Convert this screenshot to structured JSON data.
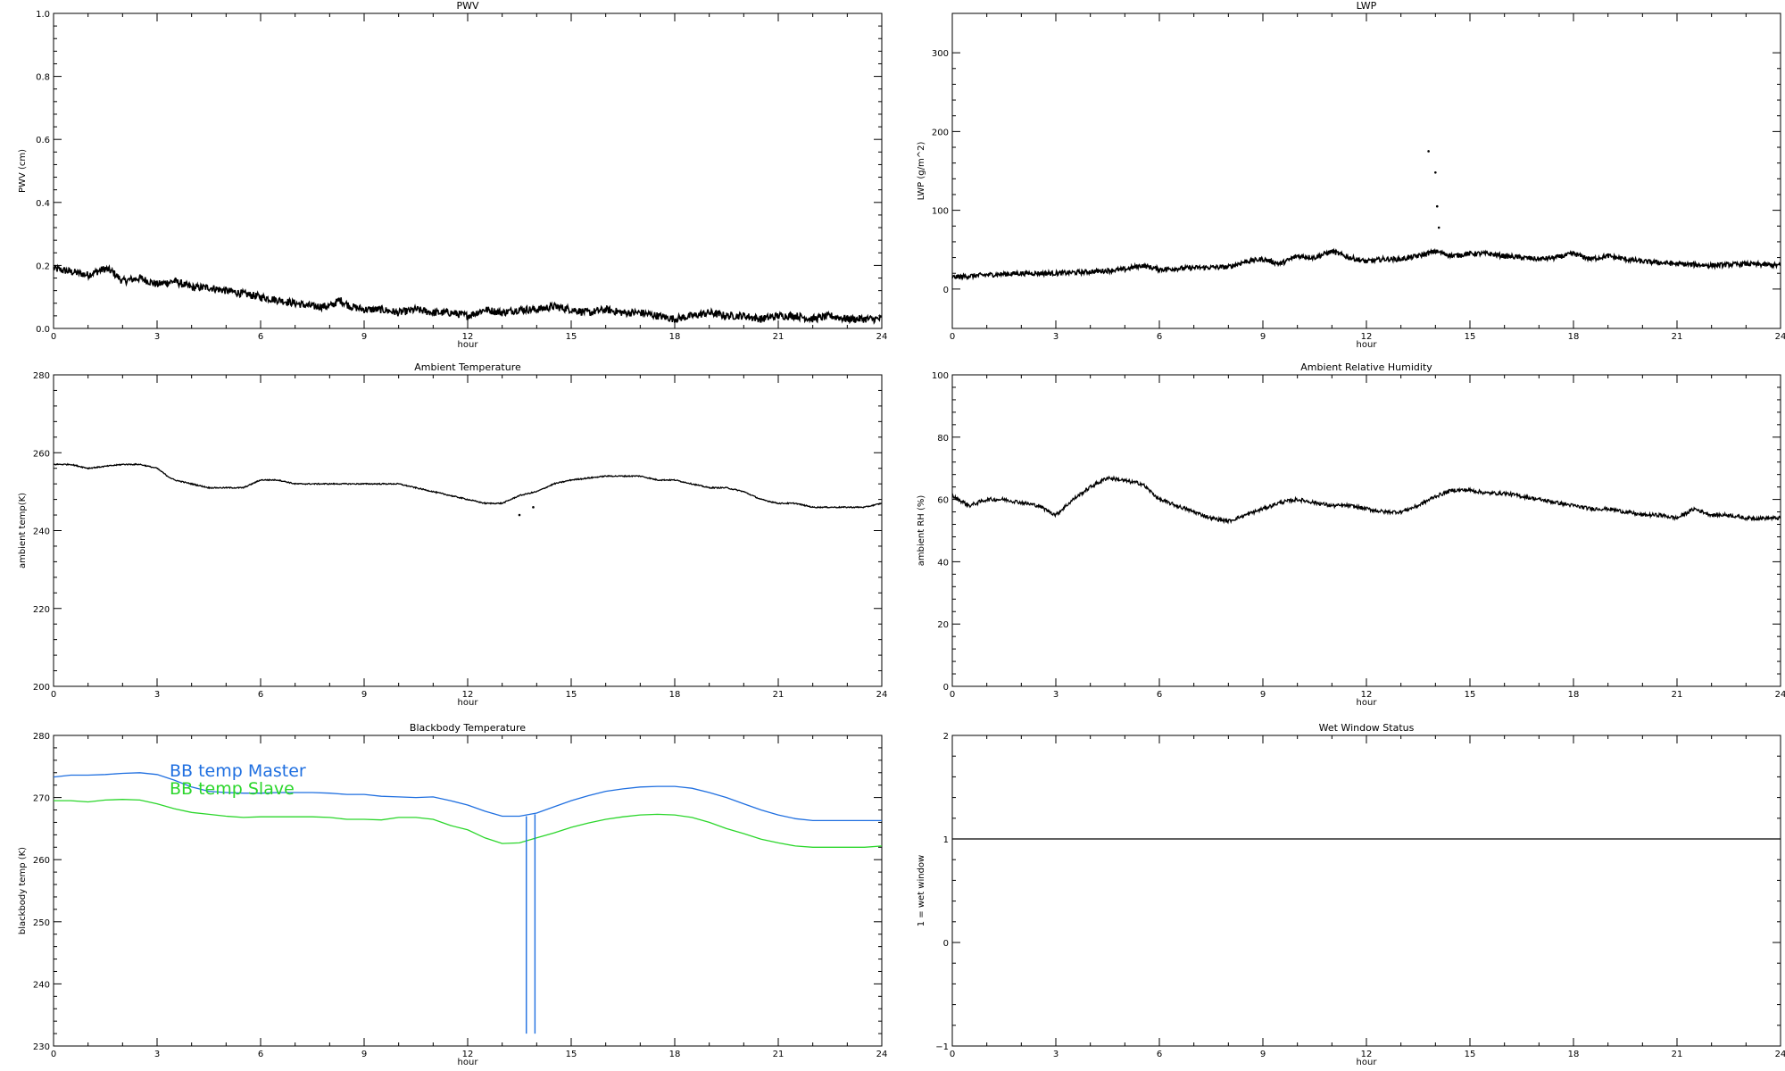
{
  "xlabel": "hour",
  "chart_data": [
    {
      "type": "scatter",
      "title": "PWV",
      "xlabel": "hour",
      "ylabel": "PWV (cm)",
      "xlim": [
        0,
        24
      ],
      "ylim": [
        0,
        1
      ],
      "xticks": [
        0,
        3,
        6,
        9,
        12,
        15,
        18,
        21,
        24
      ],
      "yticks": [
        "0.0",
        "0.2",
        "0.4",
        "0.6",
        "0.8",
        "1.0"
      ],
      "noise": 0.012,
      "series": [
        {
          "color": "#000000",
          "x": [
            0,
            0.5,
            1,
            1.5,
            1.7,
            2,
            2.5,
            3,
            3.5,
            4,
            4.5,
            5,
            5.5,
            6,
            6.5,
            7,
            7.5,
            8,
            8.3,
            8.6,
            9,
            9.5,
            10,
            10.5,
            11,
            11.5,
            12,
            12.5,
            13,
            13.5,
            14,
            14.5,
            15,
            15.5,
            16,
            16.5,
            17,
            17.5,
            18,
            18.5,
            19,
            19.5,
            20,
            20.5,
            21,
            21.5,
            22,
            22.5,
            23,
            23.5,
            24
          ],
          "y": [
            0.19,
            0.18,
            0.17,
            0.19,
            0.18,
            0.15,
            0.16,
            0.14,
            0.15,
            0.13,
            0.13,
            0.12,
            0.11,
            0.1,
            0.09,
            0.08,
            0.07,
            0.07,
            0.09,
            0.07,
            0.06,
            0.06,
            0.05,
            0.06,
            0.05,
            0.05,
            0.04,
            0.06,
            0.05,
            0.06,
            0.06,
            0.07,
            0.06,
            0.05,
            0.06,
            0.05,
            0.05,
            0.04,
            0.03,
            0.04,
            0.05,
            0.04,
            0.04,
            0.03,
            0.04,
            0.04,
            0.03,
            0.04,
            0.03,
            0.03,
            0.03
          ]
        }
      ]
    },
    {
      "type": "scatter",
      "title": "LWP",
      "xlabel": "hour",
      "ylabel": "LWP (g/m^2)",
      "xlim": [
        0,
        24
      ],
      "ylim": [
        -50,
        350
      ],
      "xticks": [
        0,
        3,
        6,
        9,
        12,
        15,
        18,
        21,
        24
      ],
      "yticks": [
        "0",
        "100",
        "200",
        "300"
      ],
      "noise": 3,
      "series": [
        {
          "color": "#000000",
          "x": [
            0,
            1,
            2,
            3,
            4,
            5,
            5.5,
            6,
            7,
            8,
            8.5,
            9,
            9.5,
            10,
            10.5,
            11,
            11.5,
            12,
            12.5,
            13,
            13.5,
            14,
            14.5,
            15,
            15.5,
            16,
            16.5,
            17,
            17.5,
            18,
            18.5,
            19,
            19.5,
            20,
            21,
            22,
            23,
            24
          ],
          "y": [
            15,
            18,
            20,
            20,
            22,
            25,
            30,
            25,
            27,
            28,
            35,
            38,
            32,
            42,
            40,
            48,
            40,
            35,
            38,
            38,
            42,
            48,
            42,
            45,
            45,
            42,
            40,
            38,
            40,
            45,
            38,
            42,
            38,
            35,
            32,
            30,
            32,
            30
          ]
        }
      ],
      "outliers": [
        {
          "x": 13.8,
          "y": 175
        },
        {
          "x": 14.0,
          "y": 148
        },
        {
          "x": 14.05,
          "y": 105
        },
        {
          "x": 14.1,
          "y": 78
        }
      ]
    },
    {
      "type": "line",
      "title": "Ambient Temperature",
      "xlabel": "hour",
      "ylabel": "ambient temp(K)",
      "xlim": [
        0,
        24
      ],
      "ylim": [
        200,
        280
      ],
      "xticks": [
        0,
        3,
        6,
        9,
        12,
        15,
        18,
        21,
        24
      ],
      "yticks": [
        "200",
        "220",
        "240",
        "260",
        "280"
      ],
      "noise": 0.15,
      "series": [
        {
          "color": "#000000",
          "x": [
            0,
            0.5,
            1,
            2,
            2.5,
            3,
            3.3,
            3.5,
            4,
            4.5,
            5,
            5.5,
            6,
            6.5,
            7,
            7.5,
            8,
            9,
            10,
            10.5,
            11,
            11.5,
            12,
            12.5,
            13,
            13.5,
            14,
            14.5,
            15,
            16,
            16.5,
            17,
            17.5,
            18,
            18.5,
            19,
            19.5,
            20,
            20.5,
            21,
            21.5,
            22,
            23,
            23.5,
            24
          ],
          "y": [
            257,
            257,
            256,
            257,
            257,
            256,
            254,
            253,
            252,
            251,
            251,
            251,
            253,
            253,
            252,
            252,
            252,
            252,
            252,
            251,
            250,
            249,
            248,
            247,
            247,
            249,
            250,
            252,
            253,
            254,
            254,
            254,
            253,
            253,
            252,
            251,
            251,
            250,
            248,
            247,
            247,
            246,
            246,
            246,
            247
          ]
        }
      ],
      "outliers": [
        {
          "x": 13.5,
          "y": 244
        },
        {
          "x": 13.9,
          "y": 246
        }
      ]
    },
    {
      "type": "line",
      "title": "Ambient Relative Humidity",
      "xlabel": "hour",
      "ylabel": "ambient RH (%)",
      "xlim": [
        0,
        24
      ],
      "ylim": [
        0,
        100
      ],
      "xticks": [
        0,
        3,
        6,
        9,
        12,
        15,
        18,
        21,
        24
      ],
      "yticks": [
        "0",
        "20",
        "40",
        "60",
        "80",
        "100"
      ],
      "noise": 0.6,
      "series": [
        {
          "color": "#000000",
          "x": [
            0,
            0.5,
            1,
            1.5,
            2,
            2.5,
            3,
            3.2,
            3.5,
            4,
            4.5,
            5,
            5.5,
            6,
            6.5,
            7,
            7.5,
            8,
            8.5,
            9,
            9.5,
            10,
            10.5,
            11,
            11.5,
            12,
            12.5,
            13,
            13.5,
            14,
            14.5,
            15,
            15.5,
            16,
            16.5,
            17,
            17.5,
            18,
            18.5,
            19,
            19.5,
            20,
            20.5,
            21,
            21.5,
            22,
            22.5,
            23,
            23.5,
            24
          ],
          "y": [
            61,
            58,
            60,
            60,
            59,
            58,
            55,
            57,
            60,
            64,
            67,
            66,
            65,
            60,
            58,
            56,
            54,
            53,
            55,
            57,
            59,
            60,
            59,
            58,
            58,
            57,
            56,
            56,
            58,
            61,
            63,
            63,
            62,
            62,
            61,
            60,
            59,
            58,
            57,
            57,
            56,
            55,
            55,
            54,
            57,
            55,
            55,
            54,
            54,
            54
          ]
        }
      ]
    },
    {
      "type": "line",
      "title": "Blackbody Temperature",
      "xlabel": "hour",
      "ylabel": "blackbody temp (K)",
      "xlim": [
        0,
        24
      ],
      "ylim": [
        230,
        280
      ],
      "xticks": [
        0,
        3,
        6,
        9,
        12,
        15,
        18,
        21,
        24
      ],
      "yticks": [
        "230",
        "240",
        "250",
        "260",
        "270",
        "280"
      ],
      "noise": 0,
      "series": [
        {
          "name": "BB temp Master",
          "color": "#1f6fe0",
          "x": [
            0,
            0.5,
            1,
            1.5,
            2,
            2.5,
            3,
            3.5,
            4,
            4.5,
            5,
            5.5,
            6,
            6.5,
            7,
            7.5,
            8,
            8.5,
            9,
            9.5,
            10,
            10.5,
            11,
            11.5,
            12,
            12.5,
            13,
            13.5,
            14,
            14.5,
            15,
            15.5,
            16,
            16.5,
            17,
            17.5,
            18,
            18.5,
            19,
            19.5,
            20,
            20.5,
            21,
            21.5,
            22,
            22.5,
            23,
            23.5,
            24
          ],
          "y": [
            273.3,
            273.6,
            273.6,
            273.7,
            273.9,
            274,
            273.7,
            272.8,
            271.7,
            271,
            270.8,
            270.7,
            270.7,
            270.8,
            270.8,
            270.8,
            270.7,
            270.5,
            270.5,
            270.2,
            270.1,
            270.0,
            270.1,
            269.5,
            268.8,
            267.8,
            267,
            267,
            267.5,
            268.5,
            269.5,
            270.3,
            271,
            271.4,
            271.7,
            271.8,
            271.8,
            271.5,
            270.8,
            270,
            269,
            268,
            267.2,
            266.6,
            266.3,
            266.3,
            266.3,
            266.3,
            266.3
          ]
        },
        {
          "name": "BB temp Slave",
          "color": "#2bd62b",
          "x": [
            0,
            0.5,
            1,
            1.5,
            2,
            2.5,
            3,
            3.5,
            4,
            4.5,
            5,
            5.5,
            6,
            6.5,
            7,
            7.5,
            8,
            8.5,
            9,
            9.5,
            10,
            10.5,
            11,
            11.5,
            12,
            12.5,
            13,
            13.5,
            14,
            14.5,
            15,
            15.5,
            16,
            16.5,
            17,
            17.5,
            18,
            18.5,
            19,
            19.5,
            20,
            20.5,
            21,
            21.5,
            22,
            22.5,
            23,
            23.5,
            24
          ],
          "y": [
            269.5,
            269.5,
            269.3,
            269.6,
            269.7,
            269.6,
            269,
            268.2,
            267.6,
            267.3,
            267.0,
            266.8,
            266.9,
            266.9,
            266.9,
            266.9,
            266.8,
            266.5,
            266.5,
            266.4,
            266.8,
            266.8,
            266.5,
            265.5,
            264.8,
            263.5,
            262.6,
            262.7,
            263.5,
            264.3,
            265.2,
            265.9,
            266.5,
            266.9,
            267.2,
            267.3,
            267.2,
            266.8,
            266,
            265,
            264.2,
            263.3,
            262.7,
            262.2,
            262,
            262,
            262,
            262,
            262.2
          ]
        }
      ],
      "spikes": [
        {
          "x": 13.7,
          "top": 267,
          "bottom": 232,
          "color": "#1f6fe0"
        },
        {
          "x": 13.95,
          "top": 267.3,
          "bottom": 232,
          "color": "#1f6fe0"
        }
      ]
    },
    {
      "type": "line",
      "title": "Wet Window Status",
      "xlabel": "hour",
      "ylabel": "1 = wet window",
      "xlim": [
        0,
        24
      ],
      "ylim": [
        -1,
        2
      ],
      "xticks": [
        0,
        3,
        6,
        9,
        12,
        15,
        18,
        21,
        24
      ],
      "yticks": [
        "−1",
        "0",
        "1",
        "2"
      ],
      "noise": 0,
      "series": [
        {
          "color": "#000000",
          "x": [
            0,
            24
          ],
          "y": [
            1,
            1
          ]
        }
      ]
    }
  ]
}
